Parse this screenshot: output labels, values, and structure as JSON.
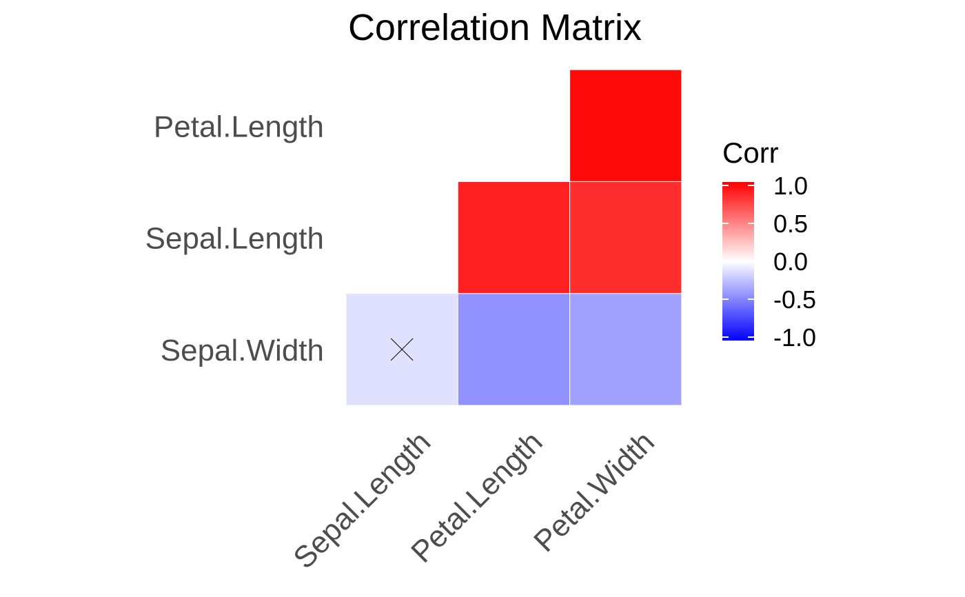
{
  "chart_data": {
    "type": "heatmap",
    "title": "Correlation Matrix",
    "x_categories": [
      "Sepal.Length",
      "Petal.Length",
      "Petal.Width"
    ],
    "y_categories": [
      "Sepal.Width",
      "Sepal.Length",
      "Petal.Length"
    ],
    "cells": [
      {
        "x": "Sepal.Length",
        "y": "Sepal.Width",
        "value": -0.12,
        "insignificant": true
      },
      {
        "x": "Petal.Length",
        "y": "Sepal.Width",
        "value": -0.43,
        "insignificant": false
      },
      {
        "x": "Petal.Width",
        "y": "Sepal.Width",
        "value": -0.37,
        "insignificant": false
      },
      {
        "x": "Petal.Length",
        "y": "Sepal.Length",
        "value": 0.87,
        "insignificant": false
      },
      {
        "x": "Petal.Width",
        "y": "Sepal.Length",
        "value": 0.82,
        "insignificant": false
      },
      {
        "x": "Petal.Width",
        "y": "Petal.Length",
        "value": 0.96,
        "insignificant": false
      }
    ],
    "legend": {
      "title": "Corr",
      "ticks": [
        "1.0",
        "0.5",
        "0.0",
        "-0.5",
        "-1.0"
      ],
      "range": [
        -1,
        1
      ],
      "placement": "right"
    },
    "colors": {
      "high": "#FF0000",
      "mid": "#FFFFFF",
      "low": "#0000FF"
    }
  }
}
